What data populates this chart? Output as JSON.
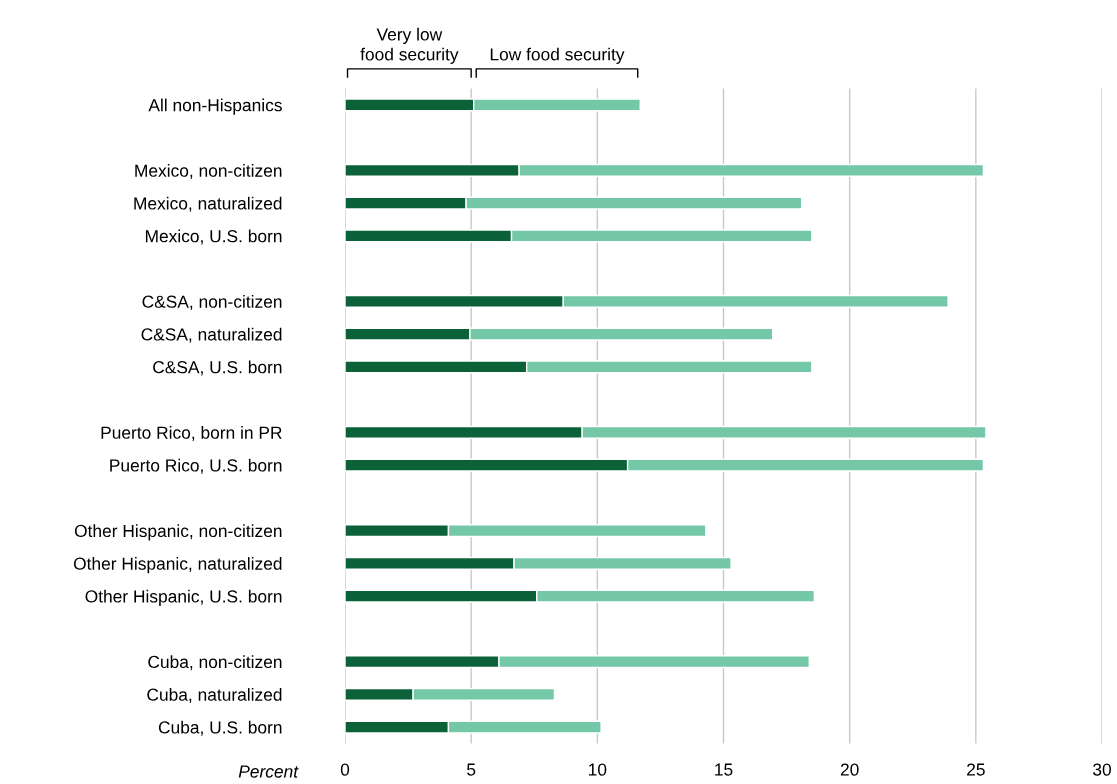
{
  "chart_data": {
    "type": "bar",
    "orientation": "horizontal",
    "stacked": true,
    "categories": [
      "All non-Hispanics",
      null,
      "Mexico, non-citizen",
      "Mexico, naturalized",
      "Mexico, U.S. born",
      null,
      "C&SA, non-citizen",
      "C&SA, naturalized",
      "C&SA, U.S. born",
      null,
      "Puerto Rico, born in PR",
      "Puerto Rico, U.S. born",
      null,
      "Other Hispanic, non-citizen",
      "Other Hispanic, naturalized",
      "Other Hispanic, U.S. born",
      null,
      "Cuba, non-citizen",
      "Cuba, naturalized",
      "Cuba, U.S. born"
    ],
    "series": [
      {
        "name": "Very low\nfood security",
        "color": "#0b6238",
        "values": [
          5.1,
          null,
          6.9,
          4.8,
          6.6,
          null,
          8.65,
          4.95,
          7.2,
          null,
          9.4,
          11.2,
          null,
          4.1,
          6.7,
          7.6,
          null,
          6.1,
          2.7,
          4.1
        ]
      },
      {
        "name": "Low food security",
        "color": "#74c8a8",
        "values": [
          6.6,
          null,
          18.4,
          13.3,
          11.9,
          null,
          15.25,
          12.0,
          11.3,
          null,
          16.0,
          14.1,
          null,
          10.2,
          8.6,
          11.0,
          null,
          12.3,
          5.6,
          6.05
        ]
      }
    ],
    "xlabel": "Percent",
    "xlim": [
      0,
      30
    ],
    "xticks": [
      0,
      5,
      10,
      15,
      20,
      25,
      30
    ],
    "grid": "x"
  }
}
